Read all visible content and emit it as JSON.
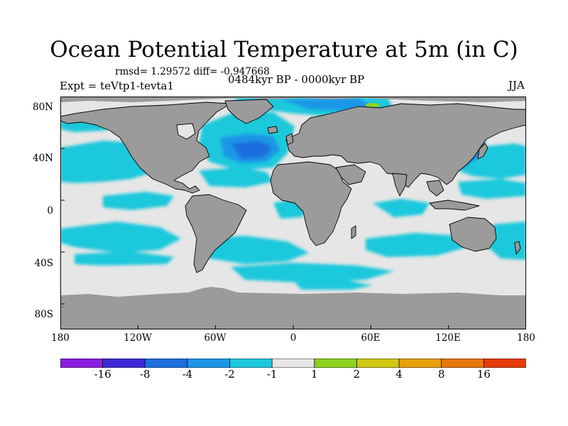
{
  "title": "Ocean Potential Temperature at 5m (in C)",
  "stats": "rmsd= 1.29572 diff= -0.947668",
  "experiment": "Expt = teVtp1-tevta1",
  "period": "0484kyr BP - 0000kyr BP",
  "season": "JJA",
  "lat_labels": [
    "80N",
    "40N",
    "0",
    "40S",
    "80S"
  ],
  "lon_labels": [
    "180",
    "120W",
    "60W",
    "0",
    "60E",
    "120E",
    "180"
  ],
  "legend": {
    "colors": [
      "#8a1ee0",
      "#3c28d8",
      "#1e6ee0",
      "#1e96e6",
      "#1ec8dc",
      "#e6e6e6",
      "#8cd21e",
      "#d2c814",
      "#e6a00a",
      "#e6780a",
      "#e63c0a"
    ],
    "labels": [
      "-16",
      "-8",
      "-4",
      "-2",
      "-1",
      "1",
      "2",
      "4",
      "8",
      "16"
    ]
  },
  "colors": {
    "land": "#9b9b9b",
    "coast": "#000000",
    "frame": "#000000"
  }
}
